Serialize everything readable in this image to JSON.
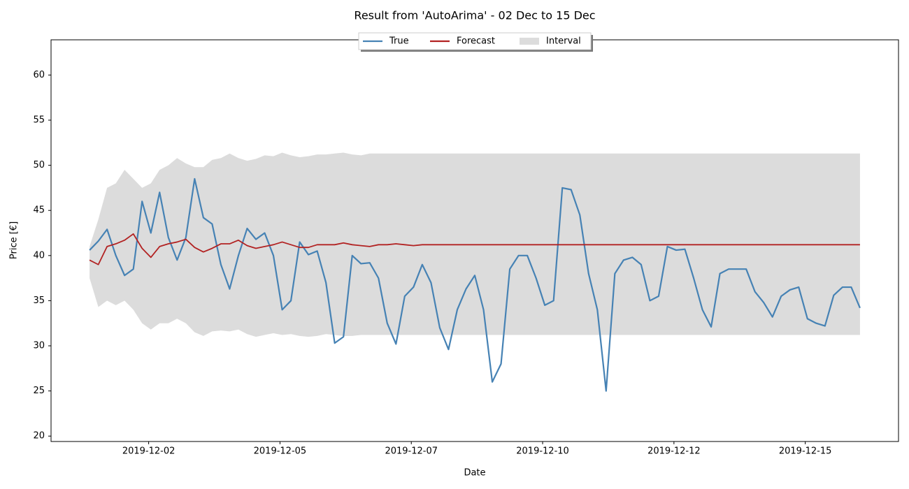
{
  "chart_data": {
    "type": "line",
    "title": "Result from 'AutoArima' - 02 Dec to 15 Dec",
    "xlabel": "Date",
    "ylabel": "Price [€]",
    "legend": "upper center",
    "grid": false,
    "xlim": [
      "2019-11-30T15:24",
      "2019-12-16T18:36"
    ],
    "xticks": [
      {
        "value": "2019-12-02T12:00",
        "label": "2019-12-02"
      },
      {
        "value": "2019-12-05T00:00",
        "label": "2019-12-05"
      },
      {
        "value": "2019-12-07T12:00",
        "label": "2019-12-07"
      },
      {
        "value": "2019-12-10T00:00",
        "label": "2019-12-10"
      },
      {
        "value": "2019-12-12T12:00",
        "label": "2019-12-12"
      },
      {
        "value": "2019-12-15T00:00",
        "label": "2019-12-15"
      }
    ],
    "ylim": [
      19.4,
      63.9
    ],
    "yticks": [
      20,
      25,
      30,
      35,
      40,
      45,
      50,
      55,
      60
    ],
    "x": [
      "2019-12-01T09:00",
      "2019-12-01T13:00",
      "2019-12-01T17:00",
      "2019-12-01T21:00",
      "2019-12-02T01:00",
      "2019-12-02T05:00",
      "2019-12-02T09:00",
      "2019-12-02T13:00",
      "2019-12-02T17:00",
      "2019-12-02T21:00",
      "2019-12-03T01:00",
      "2019-12-03T05:00",
      "2019-12-03T09:00",
      "2019-12-03T13:00",
      "2019-12-03T17:00",
      "2019-12-03T21:00",
      "2019-12-04T01:00",
      "2019-12-04T05:00",
      "2019-12-04T09:00",
      "2019-12-04T13:00",
      "2019-12-04T17:00",
      "2019-12-04T21:00",
      "2019-12-05T01:00",
      "2019-12-05T05:00",
      "2019-12-05T09:00",
      "2019-12-05T13:00",
      "2019-12-05T17:00",
      "2019-12-05T21:00",
      "2019-12-06T01:00",
      "2019-12-06T05:00",
      "2019-12-06T09:00",
      "2019-12-06T13:00",
      "2019-12-06T17:00",
      "2019-12-06T21:00",
      "2019-12-07T01:00",
      "2019-12-07T05:00",
      "2019-12-07T09:00",
      "2019-12-07T13:00",
      "2019-12-07T17:00",
      "2019-12-07T21:00",
      "2019-12-08T01:00",
      "2019-12-08T05:00",
      "2019-12-08T09:00",
      "2019-12-08T13:00",
      "2019-12-08T17:00",
      "2019-12-08T21:00",
      "2019-12-09T01:00",
      "2019-12-09T05:00",
      "2019-12-09T09:00",
      "2019-12-09T13:00",
      "2019-12-09T17:00",
      "2019-12-09T21:00",
      "2019-12-10T01:00",
      "2019-12-10T05:00",
      "2019-12-10T09:00",
      "2019-12-10T13:00",
      "2019-12-10T17:00",
      "2019-12-10T21:00",
      "2019-12-11T01:00",
      "2019-12-11T05:00",
      "2019-12-11T09:00",
      "2019-12-11T13:00",
      "2019-12-11T17:00",
      "2019-12-11T21:00",
      "2019-12-12T01:00",
      "2019-12-12T05:00",
      "2019-12-12T09:00",
      "2019-12-12T13:00",
      "2019-12-12T17:00",
      "2019-12-12T21:00",
      "2019-12-13T01:00",
      "2019-12-13T05:00",
      "2019-12-13T09:00",
      "2019-12-13T13:00",
      "2019-12-13T17:00",
      "2019-12-13T21:00",
      "2019-12-14T01:00",
      "2019-12-14T05:00",
      "2019-12-14T09:00",
      "2019-12-14T13:00",
      "2019-12-14T17:00",
      "2019-12-14T21:00",
      "2019-12-15T01:00",
      "2019-12-15T05:00",
      "2019-12-15T09:00",
      "2019-12-15T13:00",
      "2019-12-15T17:00",
      "2019-12-15T21:00",
      "2019-12-16T01:00"
    ],
    "series": [
      {
        "name": "True",
        "color": "#4682b4",
        "values": [
          40.6,
          41.6,
          42.9,
          40,
          37.8,
          38.5,
          46,
          42.5,
          47,
          42,
          39.5,
          42,
          48.5,
          44.2,
          43.5,
          39,
          36.3,
          40,
          43,
          41.8,
          42.5,
          40,
          34,
          35,
          41.5,
          40.1,
          40.5,
          37,
          30.3,
          31,
          40,
          39.1,
          39.2,
          37.5,
          32.5,
          30.2,
          35.5,
          36.5,
          39,
          37,
          32,
          29.6,
          34,
          36.3,
          37.8,
          34,
          26,
          28,
          38.5,
          40,
          40,
          37.5,
          34.5,
          35,
          47.5,
          47.3,
          44.5,
          38,
          34,
          25,
          38,
          39.5,
          39.8,
          39,
          35,
          35.5,
          41,
          40.6,
          40.7,
          37.5,
          34,
          32.1,
          38,
          38.5,
          38.5,
          38.5,
          36,
          34.8,
          33.2,
          35.5,
          36.2,
          36.5,
          33,
          32.5,
          32.2,
          35.6,
          36.5,
          36.5,
          34.2
        ]
      },
      {
        "name": "Forecast",
        "color": "#b22222",
        "values": [
          39.5,
          39,
          41,
          41.3,
          41.7,
          42.4,
          40.8,
          39.8,
          41,
          41.3,
          41.5,
          41.8,
          40.9,
          40.4,
          40.8,
          41.3,
          41.3,
          41.7,
          41.1,
          40.8,
          41,
          41.2,
          41.5,
          41.2,
          40.9,
          40.9,
          41.2,
          41.2,
          41.2,
          41.4,
          41.2,
          41.1,
          41,
          41.2,
          41.2,
          41.3,
          41.2,
          41.1,
          41.2,
          41.2,
          41.2,
          41.2,
          41.2,
          41.2,
          41.2,
          41.2,
          41.2,
          41.2,
          41.2,
          41.2,
          41.2,
          41.2,
          41.2,
          41.2,
          41.2,
          41.2,
          41.2,
          41.2,
          41.2,
          41.2,
          41.2,
          41.2,
          41.2,
          41.2,
          41.2,
          41.2,
          41.2,
          41.2,
          41.2,
          41.2,
          41.2,
          41.2,
          41.2,
          41.2,
          41.2,
          41.2,
          41.2,
          41.2,
          41.2,
          41.2,
          41.2,
          41.2,
          41.2,
          41.2,
          41.2,
          41.2,
          41.2,
          41.2,
          41.2
        ]
      },
      {
        "name": "Interval",
        "color": "#dcdcdc",
        "upper": [
          41,
          44,
          47.5,
          48,
          49.5,
          48.5,
          47.5,
          48,
          49.5,
          50,
          50.8,
          50.2,
          49.8,
          49.8,
          50.6,
          50.8,
          51.3,
          50.8,
          50.5,
          50.7,
          51.1,
          51,
          51.4,
          51.1,
          50.9,
          51,
          51.2,
          51.2,
          51.3,
          51.4,
          51.2,
          51.1,
          51.3,
          51.3,
          51.3,
          51.3,
          51.3,
          51.3,
          51.3,
          51.3,
          51.3,
          51.3,
          51.3,
          51.3,
          51.3,
          51.3,
          51.3,
          51.3,
          51.3,
          51.3,
          51.3,
          51.3,
          51.3,
          51.3,
          51.3,
          51.3,
          51.3,
          51.3,
          51.3,
          51.3,
          51.3,
          51.3,
          51.3,
          51.3,
          51.3,
          51.3,
          51.3,
          51.3,
          51.3,
          51.3,
          51.3,
          51.3,
          51.3,
          51.3,
          51.3,
          51.3,
          51.3,
          51.3,
          51.3,
          51.3,
          51.3,
          51.3,
          51.3,
          51.3,
          51.3,
          51.3,
          51.3,
          51.3,
          51.3
        ],
        "lower": [
          37.5,
          34.3,
          35,
          34.5,
          35,
          34,
          32.5,
          31.8,
          32.5,
          32.5,
          33,
          32.5,
          31.5,
          31.1,
          31.6,
          31.7,
          31.6,
          31.8,
          31.3,
          31,
          31.2,
          31.4,
          31.2,
          31.3,
          31.1,
          31,
          31.1,
          31.3,
          31.2,
          31.1,
          31.1,
          31.2,
          31.2,
          31.2,
          31.2,
          31.2,
          31.2,
          31.2,
          31.2,
          31.2,
          31.2,
          31.2,
          31.2,
          31.2,
          31.2,
          31.2,
          31.2,
          31.2,
          31.2,
          31.2,
          31.2,
          31.2,
          31.2,
          31.2,
          31.2,
          31.2,
          31.2,
          31.2,
          31.2,
          31.2,
          31.2,
          31.2,
          31.2,
          31.2,
          31.2,
          31.2,
          31.2,
          31.2,
          31.2,
          31.2,
          31.2,
          31.2,
          31.2,
          31.2,
          31.2,
          31.2,
          31.2,
          31.2,
          31.2,
          31.2,
          31.2,
          31.2,
          31.2,
          31.2,
          31.2,
          31.2,
          31.2,
          31.2,
          31.2
        ]
      }
    ]
  }
}
